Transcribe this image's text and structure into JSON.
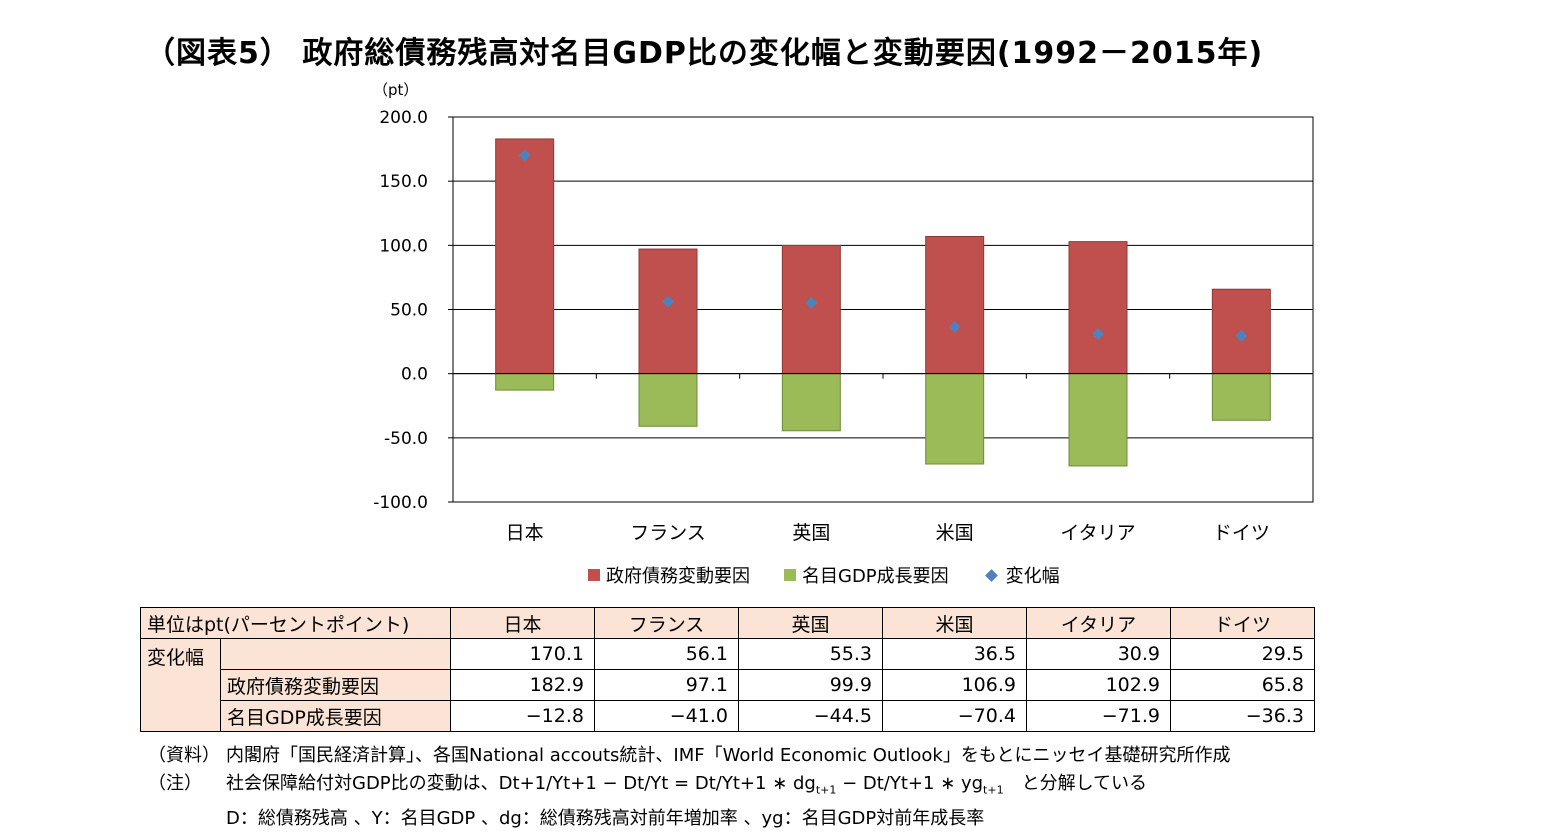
{
  "title": "（図表5） 政府総債務残高対名目GDP比の変化幅と変動要因(1992－2015年)",
  "chart_data": {
    "type": "bar",
    "unit_label": "（pt）",
    "categories": [
      "日本",
      "フランス",
      "英国",
      "米国",
      "イタリア",
      "ドイツ"
    ],
    "series": [
      {
        "name": "政府債務変動要因",
        "kind": "bar",
        "color": "#c0504d",
        "values": [
          182.9,
          97.1,
          99.9,
          106.9,
          102.9,
          65.8
        ]
      },
      {
        "name": "名目GDP成長要因",
        "kind": "bar",
        "color": "#9bbb59",
        "values": [
          -12.8,
          -41.0,
          -44.5,
          -70.4,
          -71.9,
          -36.3
        ]
      },
      {
        "name": "変化幅",
        "kind": "marker",
        "color": "#4f81bd",
        "values": [
          170.1,
          56.1,
          55.3,
          36.5,
          30.9,
          29.5
        ]
      }
    ],
    "ylim": [
      -100,
      200
    ],
    "yticks": [
      "200.0",
      "150.0",
      "100.0",
      "50.0",
      "0.0",
      "-50.0",
      "-100.0"
    ],
    "stacked": true,
    "grid": true,
    "legend_position": "bottom"
  },
  "table": {
    "header": "単位はpt(パーセントポイント)",
    "columns": [
      "日本",
      "フランス",
      "英国",
      "米国",
      "イタリア",
      "ドイツ"
    ],
    "group_label": "変化幅",
    "rows": [
      {
        "label": "",
        "values": [
          "170.1",
          "56.1",
          "55.3",
          "36.5",
          "30.9",
          "29.5"
        ]
      },
      {
        "label": "政府債務変動要因",
        "values": [
          "182.9",
          "97.1",
          "99.9",
          "106.9",
          "102.9",
          "65.8"
        ]
      },
      {
        "label": "名目GDP成長要因",
        "values": [
          "−12.8",
          "−41.0",
          "−44.5",
          "−70.4",
          "−71.9",
          "−36.3"
        ]
      }
    ]
  },
  "notes": {
    "source_tag": "（資料）",
    "source_text": "内閣府「国民経済計算」、各国National accouts統計、IMF「World Economic Outlook」をもとにニッセイ基礎研究所作成",
    "note_tag": "（注）",
    "note_line1_a": "社会保障給付対GDP比の変動は、Dt+1/Yt+1 − Dt/Yt = Dt/Yt+1 ∗ dg",
    "note_sub1": "t+1",
    "note_line1_b": " − Dt/Yt+1 ∗ yg",
    "note_sub2": "t+1",
    "note_line1_c": "　と分解している",
    "note_line2": "D：総債務残高 、Y：名目GDP 、dg：総債務残高対前年増加率 、yg：名目GDP対前年成長率"
  }
}
